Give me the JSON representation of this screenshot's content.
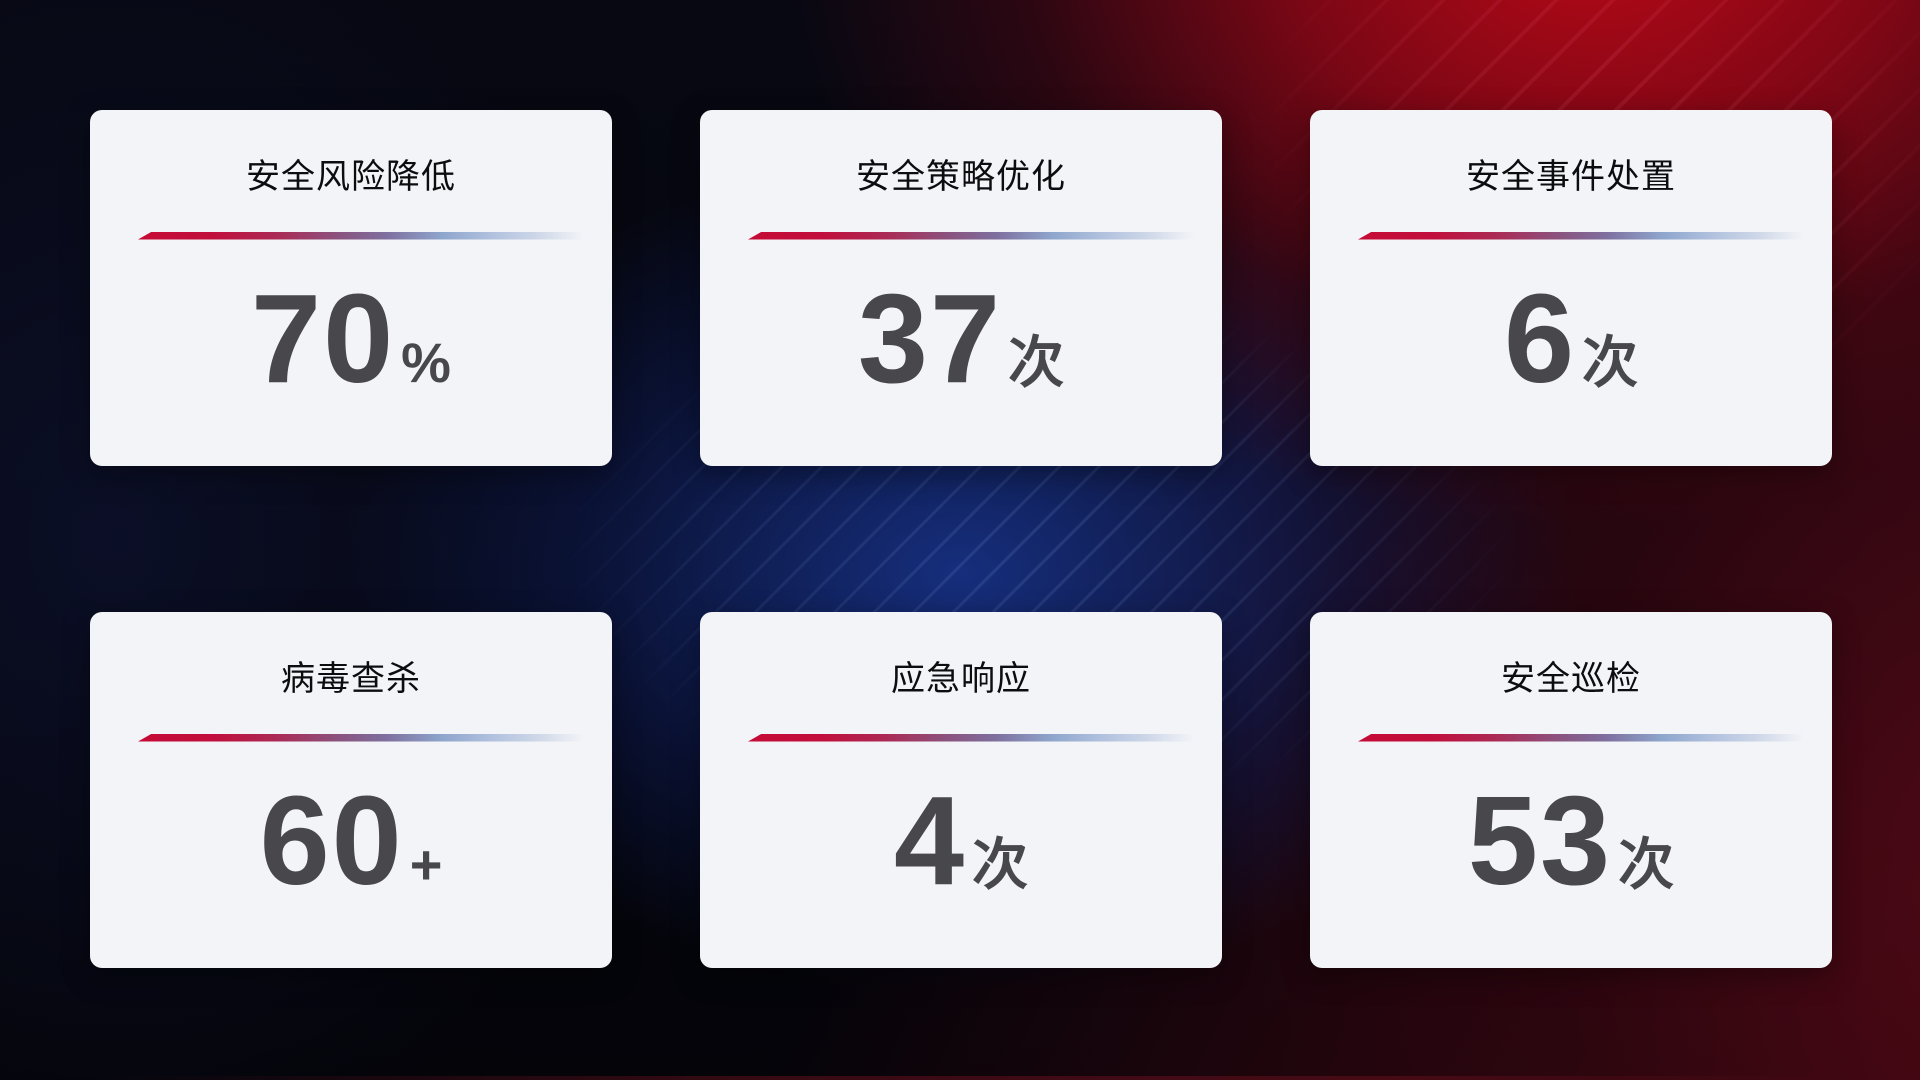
{
  "colors": {
    "card_background": "#f3f4f7",
    "title_text": "#0d0d10",
    "value_text": "#48484c",
    "divider_red": "#c40b36",
    "divider_blue": "#aebfdd",
    "background_red_glow": "#c00818",
    "background_blue_glow": "#1a3898"
  },
  "cards": [
    {
      "title": "安全风险降低",
      "value": "70",
      "unit": "%"
    },
    {
      "title": "安全策略优化",
      "value": "37",
      "unit": "次"
    },
    {
      "title": "安全事件处置",
      "value": "6",
      "unit": "次"
    },
    {
      "title": "病毒查杀",
      "value": "60",
      "unit": "+"
    },
    {
      "title": "应急响应",
      "value": "4",
      "unit": "次"
    },
    {
      "title": "安全巡检",
      "value": "53",
      "unit": "次"
    }
  ]
}
